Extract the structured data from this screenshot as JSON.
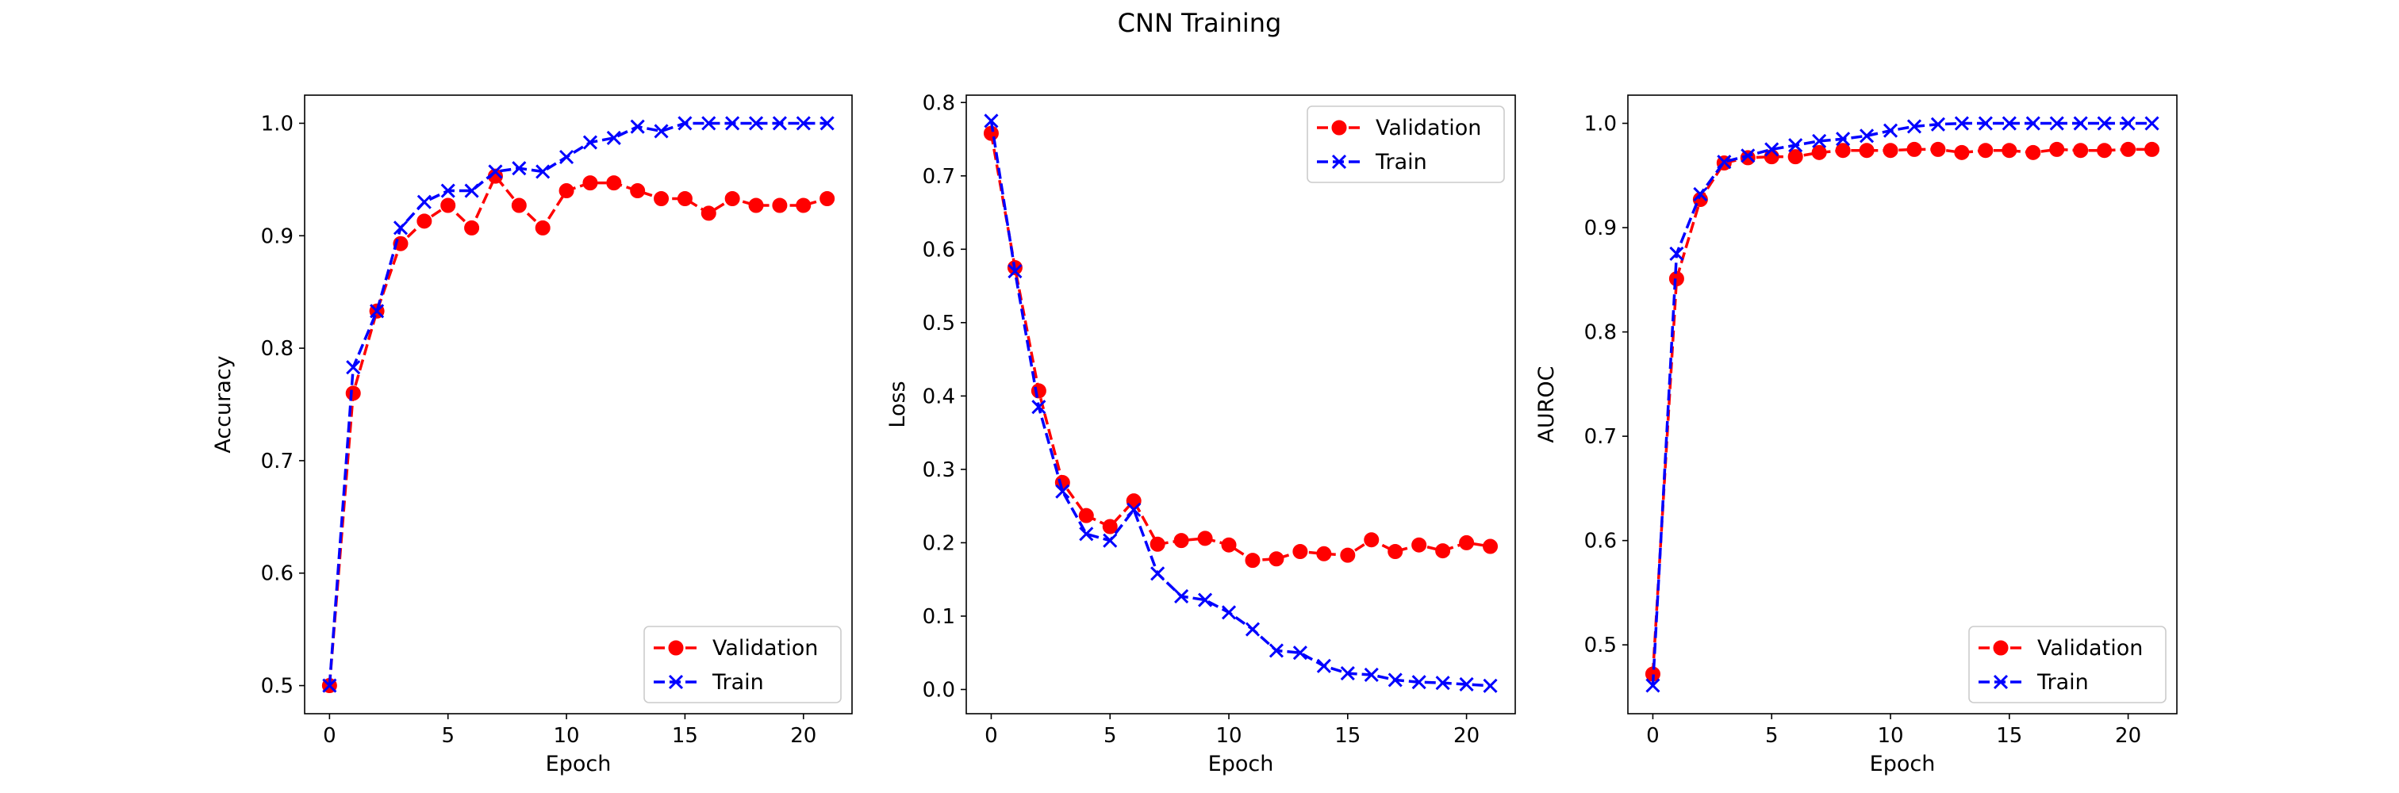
{
  "figure": {
    "title": "CNN Training"
  },
  "chart_data": [
    {
      "type": "line",
      "title": "",
      "xlabel": "Epoch",
      "ylabel": "Accuracy",
      "xlim": [
        -1.05,
        22.05
      ],
      "ylim": [
        0.475,
        1.025
      ],
      "xticks": [
        0,
        5,
        10,
        15,
        20
      ],
      "yticks": [
        0.5,
        0.6,
        0.7,
        0.8,
        0.9,
        1.0
      ],
      "grid": false,
      "legend": "lower-right",
      "x": [
        0,
        1,
        2,
        3,
        4,
        5,
        6,
        7,
        8,
        9,
        10,
        11,
        12,
        13,
        14,
        15,
        16,
        17,
        18,
        19,
        20,
        21
      ],
      "series": [
        {
          "name": "Validation",
          "color": "#ff0000",
          "marker": "circle",
          "linestyle": "dashed",
          "values": [
            0.5,
            0.76,
            0.833,
            0.893,
            0.913,
            0.927,
            0.907,
            0.953,
            0.927,
            0.907,
            0.94,
            0.947,
            0.947,
            0.94,
            0.933,
            0.933,
            0.92,
            0.933,
            0.927,
            0.927,
            0.927,
            0.933
          ]
        },
        {
          "name": "Train",
          "color": "#0000ff",
          "marker": "x",
          "linestyle": "dashed",
          "values": [
            0.5,
            0.783,
            0.833,
            0.907,
            0.93,
            0.94,
            0.94,
            0.957,
            0.96,
            0.957,
            0.97,
            0.983,
            0.987,
            0.997,
            0.993,
            1.0,
            1.0,
            1.0,
            1.0,
            1.0,
            1.0,
            1.0
          ]
        }
      ]
    },
    {
      "type": "line",
      "title": "",
      "xlabel": "Epoch",
      "ylabel": "Loss",
      "xlim": [
        -1.05,
        22.05
      ],
      "ylim": [
        -0.033,
        0.81
      ],
      "xticks": [
        0,
        5,
        10,
        15,
        20
      ],
      "yticks": [
        0.0,
        0.1,
        0.2,
        0.3,
        0.4,
        0.5,
        0.6,
        0.7,
        0.8
      ],
      "grid": false,
      "legend": "upper-right",
      "x": [
        0,
        1,
        2,
        3,
        4,
        5,
        6,
        7,
        8,
        9,
        10,
        11,
        12,
        13,
        14,
        15,
        16,
        17,
        18,
        19,
        20,
        21
      ],
      "series": [
        {
          "name": "Validation",
          "color": "#ff0000",
          "marker": "circle",
          "linestyle": "dashed",
          "values": [
            0.758,
            0.575,
            0.407,
            0.282,
            0.237,
            0.222,
            0.257,
            0.198,
            0.203,
            0.206,
            0.197,
            0.176,
            0.178,
            0.188,
            0.185,
            0.183,
            0.204,
            0.188,
            0.197,
            0.189,
            0.2,
            0.195
          ]
        },
        {
          "name": "Train",
          "color": "#0000ff",
          "marker": "x",
          "linestyle": "dashed",
          "values": [
            0.775,
            0.57,
            0.385,
            0.27,
            0.212,
            0.203,
            0.245,
            0.158,
            0.127,
            0.122,
            0.105,
            0.082,
            0.053,
            0.05,
            0.032,
            0.022,
            0.02,
            0.013,
            0.01,
            0.009,
            0.007,
            0.005
          ]
        }
      ]
    },
    {
      "type": "line",
      "title": "",
      "xlabel": "Epoch",
      "ylabel": "AUROC",
      "xlim": [
        -1.05,
        22.05
      ],
      "ylim": [
        0.434,
        1.027
      ],
      "xticks": [
        0,
        5,
        10,
        15,
        20
      ],
      "yticks": [
        0.5,
        0.6,
        0.7,
        0.8,
        0.9,
        1.0
      ],
      "grid": false,
      "legend": "lower-right",
      "x": [
        0,
        1,
        2,
        3,
        4,
        5,
        6,
        7,
        8,
        9,
        10,
        11,
        12,
        13,
        14,
        15,
        16,
        17,
        18,
        19,
        20,
        21
      ],
      "series": [
        {
          "name": "Validation",
          "color": "#ff0000",
          "marker": "circle",
          "linestyle": "dashed",
          "values": [
            0.472,
            0.851,
            0.927,
            0.962,
            0.967,
            0.968,
            0.968,
            0.972,
            0.974,
            0.974,
            0.974,
            0.975,
            0.975,
            0.972,
            0.974,
            0.974,
            0.972,
            0.975,
            0.974,
            0.974,
            0.975,
            0.975
          ]
        },
        {
          "name": "Train",
          "color": "#0000ff",
          "marker": "x",
          "linestyle": "dashed",
          "values": [
            0.461,
            0.875,
            0.932,
            0.963,
            0.969,
            0.975,
            0.979,
            0.983,
            0.985,
            0.988,
            0.993,
            0.997,
            0.999,
            1.0,
            1.0,
            1.0,
            1.0,
            1.0,
            1.0,
            1.0,
            1.0,
            1.0
          ]
        }
      ]
    }
  ]
}
